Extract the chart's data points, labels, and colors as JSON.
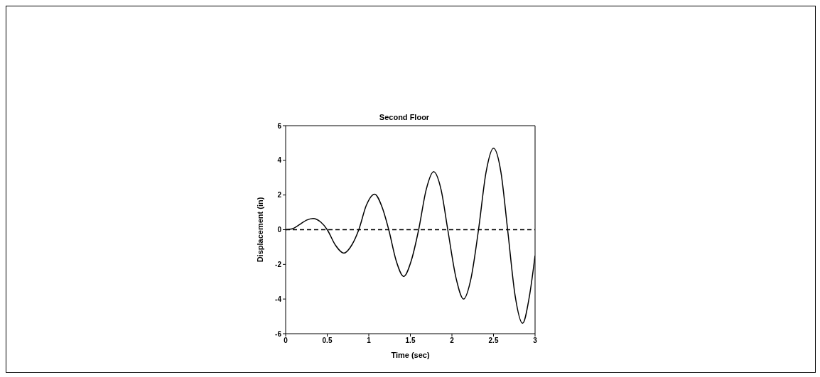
{
  "chart_data": {
    "type": "line",
    "title": "Second Floor",
    "xlabel": "Time (sec)",
    "ylabel": "Displacement (in)",
    "xlim": [
      0,
      3
    ],
    "xticks": [
      0,
      0.5,
      1,
      1.5,
      2,
      2.5,
      3
    ],
    "ylim": [
      -6,
      6
    ],
    "yticks": [
      -6,
      -4,
      -2,
      0,
      2,
      4,
      6
    ],
    "marker": "none",
    "series": [
      {
        "color": "#000000",
        "line_style": "solid",
        "x": [
          0,
          0.08,
          0.17,
          0.25,
          0.33,
          0.42,
          0.5,
          0.6,
          0.7,
          0.8,
          0.88,
          0.97,
          1.07,
          1.16,
          1.24,
          1.33,
          1.42,
          1.51,
          1.6,
          1.69,
          1.78,
          1.87,
          1.95,
          2.05,
          2.14,
          2.23,
          2.32,
          2.41,
          2.5,
          2.59,
          2.67,
          2.76,
          2.85,
          2.93,
          3
        ],
        "values": [
          0,
          0.05,
          0.3,
          0.55,
          0.65,
          0.45,
          0,
          -0.9,
          -1.35,
          -0.85,
          0,
          1.4,
          2.05,
          1.3,
          0,
          -1.8,
          -2.7,
          -1.8,
          0,
          2.3,
          3.35,
          2.3,
          0,
          -2.8,
          -4,
          -2.8,
          0,
          3.3,
          4.7,
          3.3,
          0,
          -3.8,
          -5.4,
          -3.9,
          -1.5
        ]
      },
      {
        "color": "#000000",
        "line_style": "dashed",
        "x": [
          0,
          0.5,
          1,
          1.5,
          2,
          2.5,
          3
        ],
        "values": [
          0,
          0,
          0,
          0,
          0,
          0,
          0
        ]
      }
    ]
  }
}
